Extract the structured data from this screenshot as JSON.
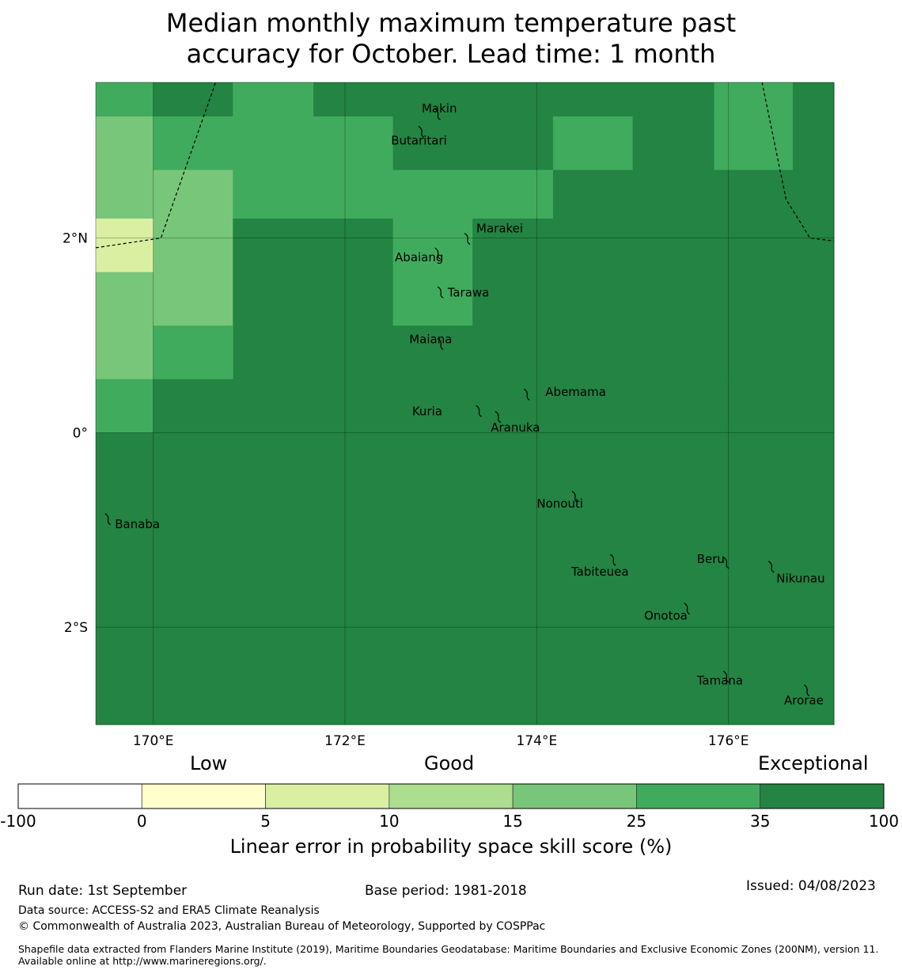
{
  "title": {
    "line1": "Median monthly maximum temperature past",
    "line2": "accuracy for October. Lead time: 1 month"
  },
  "map": {
    "lon_range": [
      169.4,
      177.1
    ],
    "lat_range": [
      -3.0,
      3.6
    ],
    "lon_ticks": [
      {
        "value": 170,
        "label": "170°E"
      },
      {
        "value": 172,
        "label": "172°E"
      },
      {
        "value": 174,
        "label": "174°E"
      },
      {
        "value": 176,
        "label": "176°E"
      }
    ],
    "lat_ticks": [
      {
        "value": 2,
        "label": "2°N"
      },
      {
        "value": 0,
        "label": "0°"
      },
      {
        "value": -2,
        "label": "2°S"
      }
    ],
    "grid_lines": true,
    "skill_cells": [
      {
        "lon": [
          169.4,
          170.0
        ],
        "lat": [
          3.25,
          3.6
        ],
        "class": 5
      },
      {
        "lon": [
          170.0,
          170.83
        ],
        "lat": [
          3.25,
          3.6
        ],
        "class": 6
      },
      {
        "lon": [
          170.83,
          171.67
        ],
        "lat": [
          3.25,
          3.6
        ],
        "class": 5
      },
      {
        "lon": [
          171.67,
          175.85
        ],
        "lat": [
          3.25,
          3.6
        ],
        "class": 6
      },
      {
        "lon": [
          175.85,
          176.67
        ],
        "lat": [
          3.25,
          3.6
        ],
        "class": 5
      },
      {
        "lon": [
          176.67,
          177.1
        ],
        "lat": [
          3.25,
          3.6
        ],
        "class": 6
      },
      {
        "lon": [
          169.4,
          170.0
        ],
        "lat": [
          2.7,
          3.25
        ],
        "class": 4
      },
      {
        "lon": [
          170.0,
          172.5
        ],
        "lat": [
          2.7,
          3.25
        ],
        "class": 5
      },
      {
        "lon": [
          172.5,
          174.17
        ],
        "lat": [
          2.7,
          3.25
        ],
        "class": 6
      },
      {
        "lon": [
          174.17,
          175.0
        ],
        "lat": [
          2.7,
          3.25
        ],
        "class": 5
      },
      {
        "lon": [
          175.0,
          175.85
        ],
        "lat": [
          2.7,
          3.25
        ],
        "class": 6
      },
      {
        "lon": [
          175.85,
          176.67
        ],
        "lat": [
          2.7,
          3.25
        ],
        "class": 5
      },
      {
        "lon": [
          176.67,
          177.1
        ],
        "lat": [
          2.7,
          3.25
        ],
        "class": 6
      },
      {
        "lon": [
          169.4,
          170.0
        ],
        "lat": [
          2.2,
          2.7
        ],
        "class": 4
      },
      {
        "lon": [
          170.0,
          170.83
        ],
        "lat": [
          2.2,
          2.7
        ],
        "class": 4
      },
      {
        "lon": [
          170.83,
          174.17
        ],
        "lat": [
          2.2,
          2.7
        ],
        "class": 5
      },
      {
        "lon": [
          174.17,
          177.1
        ],
        "lat": [
          2.2,
          2.7
        ],
        "class": 6
      },
      {
        "lon": [
          169.4,
          170.0
        ],
        "lat": [
          1.65,
          2.2
        ],
        "class": 2
      },
      {
        "lon": [
          170.0,
          170.83
        ],
        "lat": [
          1.1,
          2.2
        ],
        "class": 4
      },
      {
        "lon": [
          170.83,
          172.5
        ],
        "lat": [
          0.55,
          2.2
        ],
        "class": 6
      },
      {
        "lon": [
          172.5,
          173.33
        ],
        "lat": [
          1.1,
          2.2
        ],
        "class": 5
      },
      {
        "lon": [
          173.33,
          177.1
        ],
        "lat": [
          0.55,
          2.2
        ],
        "class": 6
      },
      {
        "lon": [
          169.4,
          170.0
        ],
        "lat": [
          0.55,
          1.65
        ],
        "class": 4
      },
      {
        "lon": [
          170.0,
          170.83
        ],
        "lat": [
          0.55,
          1.1
        ],
        "class": 5
      },
      {
        "lon": [
          172.5,
          173.33
        ],
        "lat": [
          0.55,
          1.1
        ],
        "class": 6
      },
      {
        "lon": [
          169.4,
          170.0
        ],
        "lat": [
          0.0,
          0.55
        ],
        "class": 5
      },
      {
        "lon": [
          170.0,
          177.1
        ],
        "lat": [
          0.0,
          0.55
        ],
        "class": 6
      },
      {
        "lon": [
          169.4,
          177.1
        ],
        "lat": [
          -3.0,
          0.0
        ],
        "class": 6
      }
    ],
    "eez_boundaries": [
      [
        [
          169.4,
          1.9
        ],
        [
          170.08,
          2.0
        ],
        [
          170.65,
          3.6
        ]
      ],
      [
        [
          176.35,
          3.6
        ],
        [
          176.6,
          2.4
        ],
        [
          176.85,
          2.0
        ],
        [
          177.1,
          1.97
        ]
      ]
    ],
    "islands": [
      {
        "name": "Makin",
        "lon": 172.97,
        "lat": 3.28,
        "label_lon": 172.8,
        "label_lat": 3.33
      },
      {
        "name": "Butaritari",
        "lon": 172.8,
        "lat": 3.1,
        "label_lon": 172.48,
        "label_lat": 3.0
      },
      {
        "name": "Marakei",
        "lon": 173.28,
        "lat": 2.0,
        "label_lon": 173.37,
        "label_lat": 2.1
      },
      {
        "name": "Abaiang",
        "lon": 172.97,
        "lat": 1.85,
        "label_lon": 172.52,
        "label_lat": 1.8
      },
      {
        "name": "Tarawa",
        "lon": 173.0,
        "lat": 1.45,
        "label_lon": 173.07,
        "label_lat": 1.44
      },
      {
        "name": "Maiana",
        "lon": 173.0,
        "lat": 0.92,
        "label_lon": 172.67,
        "label_lat": 0.96
      },
      {
        "name": "Abemama",
        "lon": 173.9,
        "lat": 0.4,
        "label_lon": 174.09,
        "label_lat": 0.42
      },
      {
        "name": "Kuria",
        "lon": 173.4,
        "lat": 0.23,
        "label_lon": 172.7,
        "label_lat": 0.22
      },
      {
        "name": "Aranuka",
        "lon": 173.6,
        "lat": 0.17,
        "label_lon": 173.52,
        "label_lat": 0.05
      },
      {
        "name": "Nonouti",
        "lon": 174.4,
        "lat": -0.65,
        "label_lon": 174.0,
        "label_lat": -0.73
      },
      {
        "name": "Banaba",
        "lon": 169.53,
        "lat": -0.88,
        "label_lon": 169.6,
        "label_lat": -0.94
      },
      {
        "name": "Tabiteuea",
        "lon": 174.8,
        "lat": -1.3,
        "label_lon": 174.36,
        "label_lat": -1.43
      },
      {
        "name": "Beru",
        "lon": 175.98,
        "lat": -1.33,
        "label_lon": 175.67,
        "label_lat": -1.3
      },
      {
        "name": "Nikunau",
        "lon": 176.45,
        "lat": -1.37,
        "label_lon": 176.5,
        "label_lat": -1.5
      },
      {
        "name": "Onotoa",
        "lon": 175.57,
        "lat": -1.8,
        "label_lon": 175.12,
        "label_lat": -1.88
      },
      {
        "name": "Tamana",
        "lon": 175.98,
        "lat": -2.5,
        "label_lon": 175.67,
        "label_lat": -2.55
      },
      {
        "name": "Arorae",
        "lon": 176.82,
        "lat": -2.64,
        "label_lon": 176.58,
        "label_lat": -2.75
      }
    ]
  },
  "colorbar": {
    "words": {
      "low": "Low",
      "good": "Good",
      "exceptional": "Exceptional"
    },
    "ticks": [
      "-100",
      "0",
      "5",
      "10",
      "15",
      "25",
      "35",
      "100"
    ],
    "colors": [
      "#ffffff",
      "#ffffcc",
      "#d9f0a3",
      "#addd8e",
      "#78c679",
      "#41ab5d",
      "#238443"
    ],
    "label": "Linear error in probability space skill score (%)"
  },
  "footer": {
    "run_date": "Run date: 1st September",
    "base_period": "Base period: 1981-2018",
    "issued": "Issued: 04/08/2023",
    "data_source": "Data source: ACCESS-S2 and ERA5 Climate Reanalysis",
    "copyright": "© Commonwealth of Australia 2023, Australian Bureau of Meteorology, Supported by COSPPac",
    "shapefile": "Shapefile data extracted from Flanders Marine Institute (2019), Maritime Boundaries Geodatabase: Maritime Boundaries and Exclusive Economic Zones (200NM), version 11. Available online at http://www.marineregions.org/."
  }
}
